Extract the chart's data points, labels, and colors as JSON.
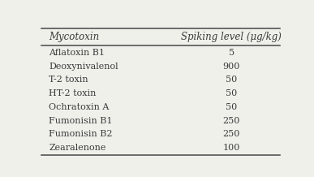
{
  "col1_header": "Mycotoxin",
  "col2_header": "Spiking level (μg/kg)",
  "rows": [
    [
      "Aflatoxin B1",
      "5"
    ],
    [
      "Deoxynivalenol",
      "900"
    ],
    [
      "T-2 toxin",
      "50"
    ],
    [
      "HT-2 toxin",
      "50"
    ],
    [
      "Ochratoxin A",
      "50"
    ],
    [
      "Fumonisin B1",
      "250"
    ],
    [
      "Fumonisin B2",
      "250"
    ],
    [
      "Zearalenone",
      "100"
    ]
  ],
  "bg_color": "#f0f0eb",
  "text_color": "#3a3a3a",
  "border_color": "#555555",
  "font_size": 8.0,
  "header_font_size": 8.5,
  "fig_width": 3.87,
  "fig_height": 2.18
}
